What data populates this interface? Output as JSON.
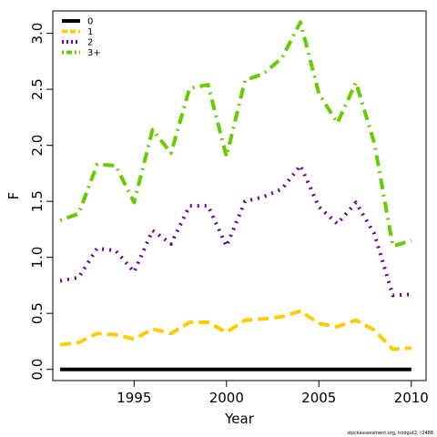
{
  "chart_data": {
    "type": "line",
    "xlabel": "Year",
    "ylabel": "F",
    "xlim": [
      1990.6,
      2010.8
    ],
    "ylim": [
      -0.1,
      3.2
    ],
    "x_ticks": [
      1995,
      2000,
      2005,
      2010
    ],
    "y_ticks": [
      0.0,
      0.5,
      1.0,
      1.5,
      2.0,
      2.5,
      3.0
    ],
    "y_tick_labels": [
      "0.0",
      "0.5",
      "1.0",
      "1.5",
      "2.0",
      "2.5",
      "3.0"
    ],
    "grid": false,
    "legend_position": "top-left",
    "x": [
      1991,
      1992,
      1993,
      1994,
      1995,
      1996,
      1997,
      1998,
      1999,
      2000,
      2001,
      2002,
      2003,
      2004,
      2005,
      2006,
      2007,
      2008,
      2009,
      2010
    ],
    "series": [
      {
        "name": "0",
        "color": "#000000",
        "dash": "solid",
        "values": [
          0.0,
          0.0,
          0.0,
          0.0,
          0.0,
          0.0,
          0.0,
          0.0,
          0.0,
          0.0,
          0.0,
          0.0,
          0.0,
          0.0,
          0.0,
          0.0,
          0.0,
          0.0,
          0.0,
          0.0
        ]
      },
      {
        "name": "1",
        "color": "#FFCC00",
        "dash": "dashed",
        "values": [
          0.22,
          0.24,
          0.32,
          0.31,
          0.27,
          0.36,
          0.32,
          0.42,
          0.42,
          0.33,
          0.44,
          0.45,
          0.47,
          0.52,
          0.41,
          0.38,
          0.44,
          0.35,
          0.18,
          0.19
        ]
      },
      {
        "name": "2",
        "color": "#660099",
        "dash": "dotted",
        "values": [
          0.79,
          0.82,
          1.08,
          1.06,
          0.87,
          1.24,
          1.12,
          1.46,
          1.46,
          1.1,
          1.5,
          1.54,
          1.61,
          1.82,
          1.45,
          1.3,
          1.49,
          1.21,
          0.66,
          0.67
        ]
      },
      {
        "name": "3+",
        "color": "#66CC00",
        "dash": "dotdash",
        "values": [
          1.33,
          1.39,
          1.83,
          1.82,
          1.49,
          2.14,
          1.93,
          2.51,
          2.54,
          1.9,
          2.58,
          2.64,
          2.78,
          3.1,
          2.46,
          2.2,
          2.56,
          2.02,
          1.1,
          1.15
        ]
      }
    ]
  },
  "footer": {
    "credit": "stockassessment.org, hodgut2, r2488"
  }
}
